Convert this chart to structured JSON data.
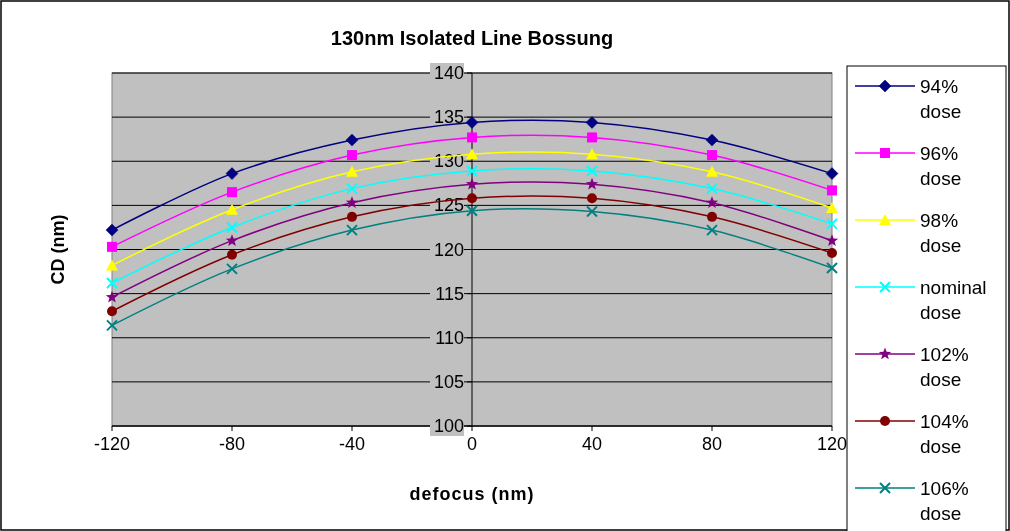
{
  "chart_data": {
    "type": "line",
    "title": "130nm Isolated Line Bossung",
    "xlabel": "defocus (nm)",
    "ylabel": "CD (nm)",
    "x": [
      -120,
      -80,
      -40,
      0,
      40,
      80,
      120
    ],
    "xlim": [
      -120,
      120
    ],
    "xticks": [
      -120,
      -80,
      -40,
      0,
      40,
      80,
      120
    ],
    "ylim": [
      100,
      140
    ],
    "yticks": [
      100,
      105,
      110,
      115,
      120,
      125,
      130,
      135,
      140
    ],
    "grid": "y",
    "legend": "right",
    "series": [
      {
        "name": "94% dose",
        "color": "#000080",
        "marker": "diamond",
        "values": [
          122.2,
          128.6,
          132.4,
          134.4,
          134.4,
          132.4,
          128.6
        ]
      },
      {
        "name": "96% dose",
        "color": "#ff00ff",
        "marker": "square",
        "values": [
          120.3,
          126.5,
          130.7,
          132.7,
          132.7,
          130.7,
          126.7
        ]
      },
      {
        "name": "98% dose",
        "color": "#ffff00",
        "marker": "triangle",
        "values": [
          118.2,
          124.5,
          128.8,
          130.8,
          130.8,
          128.8,
          124.7
        ]
      },
      {
        "name": "nominal dose",
        "color": "#00ffff",
        "marker": "cross",
        "values": [
          116.2,
          122.5,
          126.9,
          128.9,
          128.9,
          126.9,
          122.9
        ]
      },
      {
        "name": "102% dose",
        "color": "#800080",
        "marker": "star",
        "values": [
          114.6,
          121.0,
          125.3,
          127.4,
          127.4,
          125.3,
          121.0
        ]
      },
      {
        "name": "104% dose",
        "color": "#800000",
        "marker": "circle",
        "values": [
          113.0,
          119.4,
          123.7,
          125.8,
          125.8,
          123.7,
          119.6
        ]
      },
      {
        "name": "106% dose",
        "color": "#008080",
        "marker": "cross",
        "values": [
          111.4,
          117.8,
          122.2,
          124.4,
          124.3,
          122.2,
          117.9
        ]
      }
    ]
  }
}
